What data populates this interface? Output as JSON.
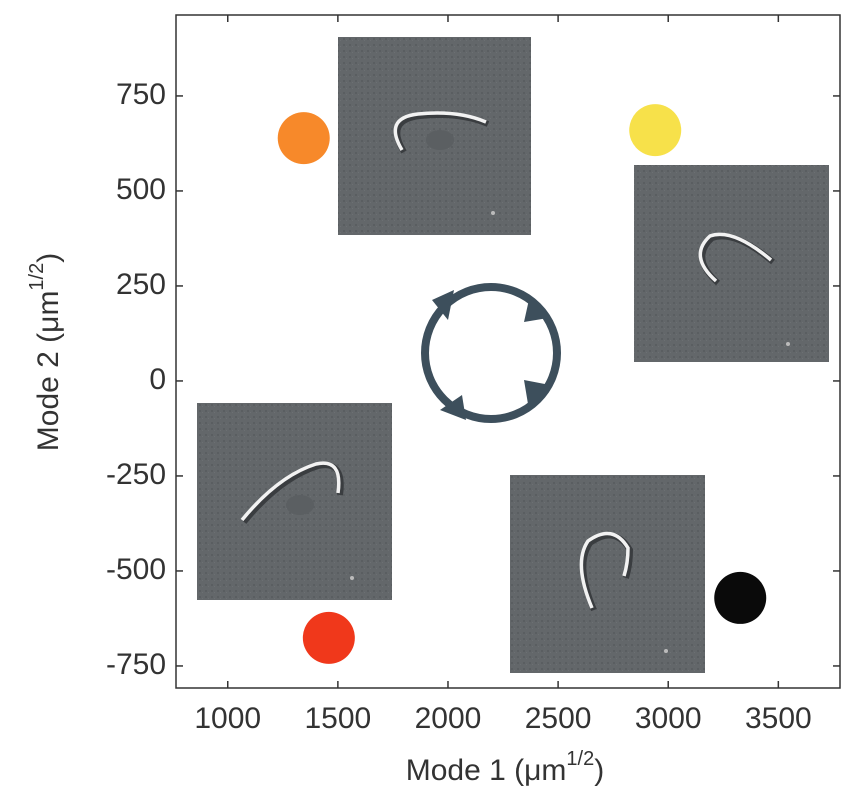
{
  "chart_data": {
    "type": "scatter",
    "x_label": "Mode 1 (μm",
    "x_label_sup": "1/2",
    "x_label_end": ")",
    "y_label": "Mode 2 (μm",
    "y_label_sup": "1/2",
    "y_label_end": ")",
    "x": [
      1345,
      2941,
      3327,
      1459
    ],
    "values": [
      639,
      660,
      -571,
      -676
    ],
    "colors": [
      "#f7892a",
      "#f7e14a",
      "#0a0a0a",
      "#f0381b"
    ],
    "xlim": [
      765,
      3780
    ],
    "xticks": [
      1000,
      1500,
      2000,
      2500,
      3000,
      3500
    ],
    "ylim": [
      -808,
      963
    ],
    "yticks": [
      750,
      500,
      250,
      0,
      -250,
      -500,
      -750
    ],
    "grid": false
  }
}
